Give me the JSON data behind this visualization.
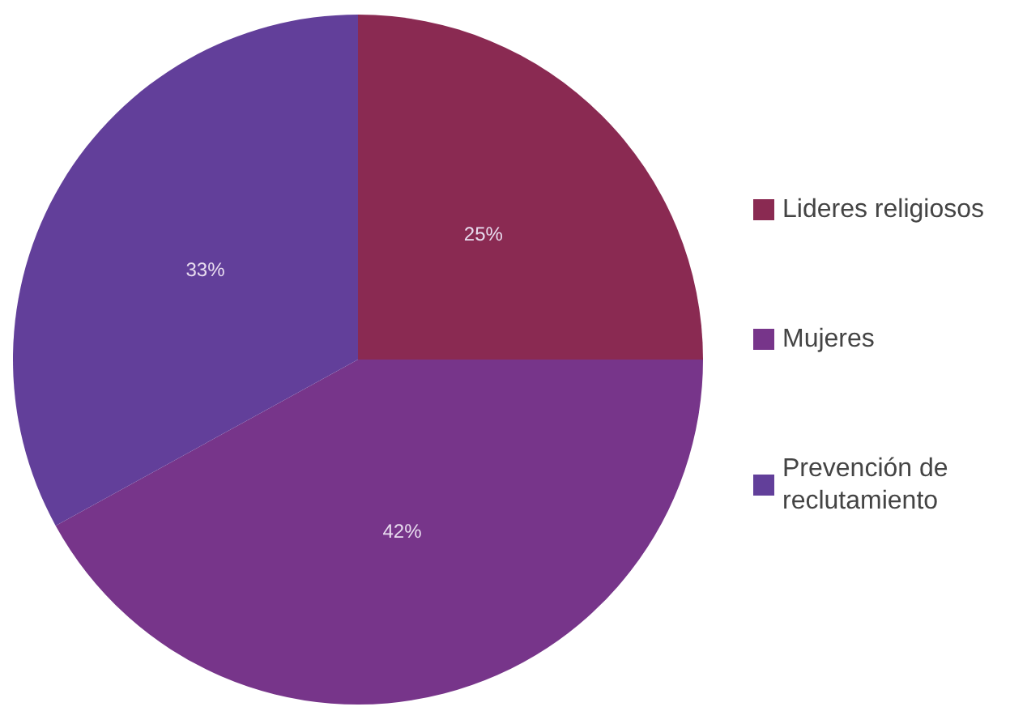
{
  "chart_data": {
    "type": "pie",
    "categories": [
      "Lideres religiosos",
      "Mujeres",
      "Prevención de reclutamiento"
    ],
    "values": [
      25,
      42,
      33
    ],
    "colors": [
      "#8a2a52",
      "#77358a",
      "#623f9a"
    ],
    "value_labels": [
      "25%",
      "42%",
      "33%"
    ],
    "legend": "right"
  }
}
